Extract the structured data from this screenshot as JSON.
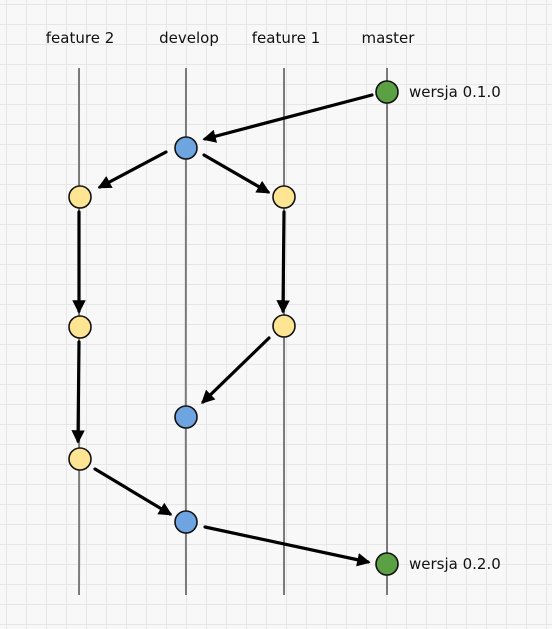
{
  "colors": {
    "feature": "#fde593",
    "develop": "#6ea5e0",
    "master": "#5ca044"
  },
  "branches": [
    {
      "id": "feature2",
      "label": "feature 2"
    },
    {
      "id": "develop",
      "label": "develop"
    },
    {
      "id": "feature1",
      "label": "feature 1"
    },
    {
      "id": "master",
      "label": "master"
    }
  ],
  "commits": [
    {
      "id": "m1",
      "branch": "master",
      "tag": "wersja 0.1.0"
    },
    {
      "id": "d1",
      "branch": "develop"
    },
    {
      "id": "f2a",
      "branch": "feature2"
    },
    {
      "id": "f1a",
      "branch": "feature1"
    },
    {
      "id": "f2b",
      "branch": "feature2"
    },
    {
      "id": "f1b",
      "branch": "feature1"
    },
    {
      "id": "d2",
      "branch": "develop"
    },
    {
      "id": "f2c",
      "branch": "feature2"
    },
    {
      "id": "d3",
      "branch": "develop"
    },
    {
      "id": "m2",
      "branch": "master",
      "tag": "wersja 0.2.0"
    }
  ],
  "edges": [
    {
      "from": "m1",
      "to": "d1"
    },
    {
      "from": "d1",
      "to": "f2a"
    },
    {
      "from": "d1",
      "to": "f1a"
    },
    {
      "from": "f2a",
      "to": "f2b"
    },
    {
      "from": "f1a",
      "to": "f1b"
    },
    {
      "from": "f1b",
      "to": "d2"
    },
    {
      "from": "f2b",
      "to": "f2c"
    },
    {
      "from": "f2c",
      "to": "d3"
    },
    {
      "from": "d3",
      "to": "m2"
    }
  ]
}
